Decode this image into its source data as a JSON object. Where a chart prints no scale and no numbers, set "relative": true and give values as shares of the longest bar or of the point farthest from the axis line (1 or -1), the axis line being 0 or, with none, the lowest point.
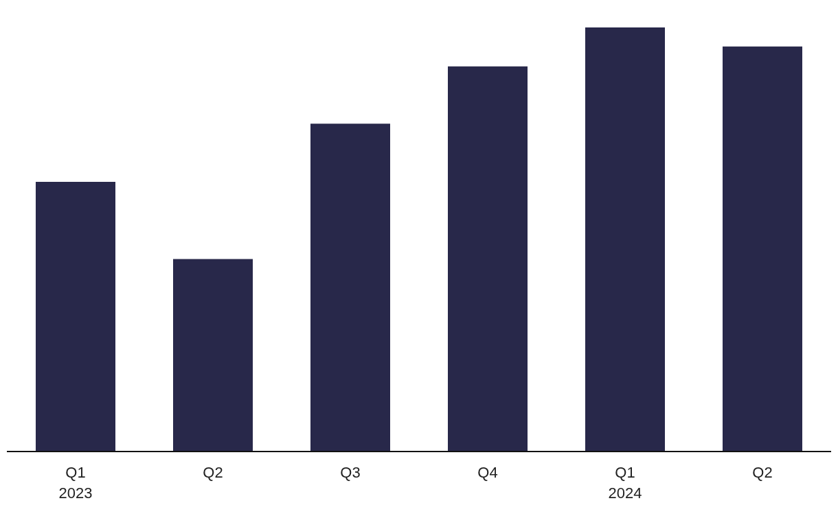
{
  "chart_data": {
    "type": "bar",
    "relative": true,
    "categories": [
      "Q1\n2023",
      "Q2",
      "Q3",
      "Q4",
      "Q1\n2024",
      "Q2"
    ],
    "values": [
      0.636,
      0.454,
      0.773,
      0.908,
      1,
      0.955
    ],
    "color": "#28284a",
    "grid": false,
    "legend": false
  }
}
